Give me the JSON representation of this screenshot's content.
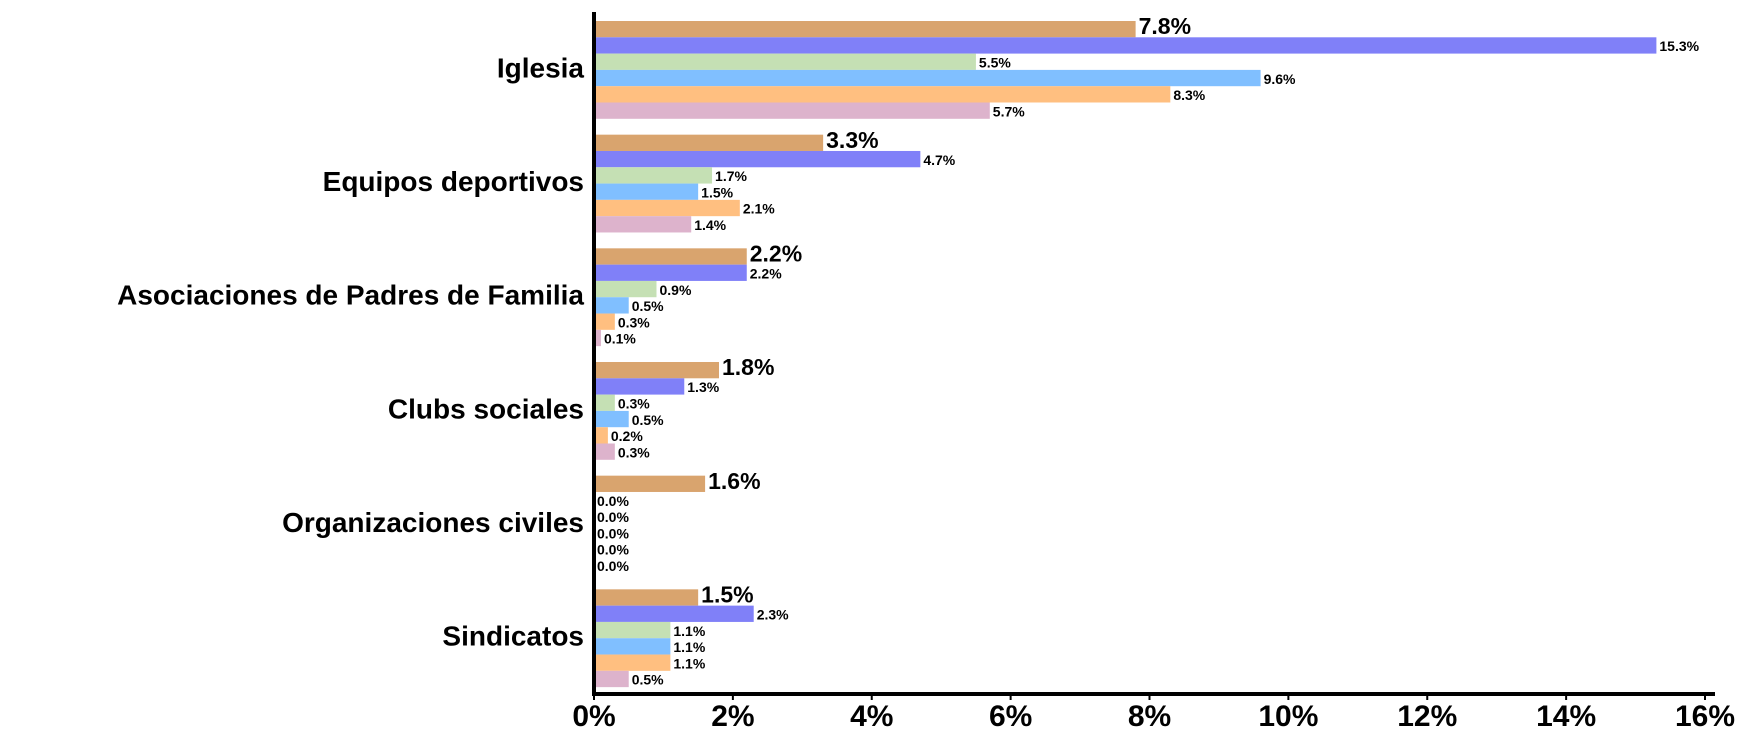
{
  "chart_data": {
    "type": "hbar",
    "categories": [
      "Iglesia",
      "Equipos deportivos",
      "Asociaciones de Padres de Familia",
      "Clubs sociales",
      "Organizaciones civiles",
      "Sindicatos"
    ],
    "series": [
      {
        "color": "#d9a46e",
        "values": [
          7.8,
          3.3,
          2.2,
          1.8,
          1.6,
          1.5
        ],
        "value_labels": [
          "7.8%",
          "3.3%",
          "2.2%",
          "1.8%",
          "1.6%",
          "1.5%"
        ]
      },
      {
        "color": "#8080f8",
        "values": [
          15.3,
          4.7,
          2.2,
          1.3,
          0.0,
          2.3
        ],
        "value_labels": [
          "15.3%",
          "4.7%",
          "2.2%",
          "1.3%",
          "0.0%",
          "2.3%"
        ]
      },
      {
        "color": "#c5e0b4",
        "values": [
          5.5,
          1.7,
          0.9,
          0.3,
          0.0,
          1.1
        ],
        "value_labels": [
          "5.5%",
          "1.7%",
          "0.9%",
          "0.3%",
          "0.0%",
          "1.1%"
        ]
      },
      {
        "color": "#80bfff",
        "values": [
          9.6,
          1.5,
          0.5,
          0.5,
          0.0,
          1.1
        ],
        "value_labels": [
          "9.6%",
          "1.5%",
          "0.5%",
          "0.5%",
          "0.0%",
          "1.1%"
        ]
      },
      {
        "color": "#ffbf80",
        "values": [
          8.3,
          2.1,
          0.3,
          0.2,
          0.0,
          1.1
        ],
        "value_labels": [
          "8.3%",
          "2.1%",
          "0.3%",
          "0.2%",
          "0.0%",
          "1.1%"
        ]
      },
      {
        "color": "#ddb3cc",
        "values": [
          5.7,
          1.4,
          0.1,
          0.3,
          0.0,
          0.5
        ],
        "value_labels": [
          "5.7%",
          "1.4%",
          "0.1%",
          "0.3%",
          "0.0%",
          "0.5%"
        ]
      }
    ],
    "xlim": [
      0,
      16
    ],
    "xticks": [
      {
        "value": 0,
        "label": "0%"
      },
      {
        "value": 2,
        "label": "2%"
      },
      {
        "value": 4,
        "label": "4%"
      },
      {
        "value": 6,
        "label": "6%"
      },
      {
        "value": 8,
        "label": "8%"
      },
      {
        "value": 10,
        "label": "10%"
      },
      {
        "value": 12,
        "label": "12%"
      },
      {
        "value": 14,
        "label": "14%"
      },
      {
        "value": 16,
        "label": "16%"
      }
    ],
    "grid": false
  }
}
